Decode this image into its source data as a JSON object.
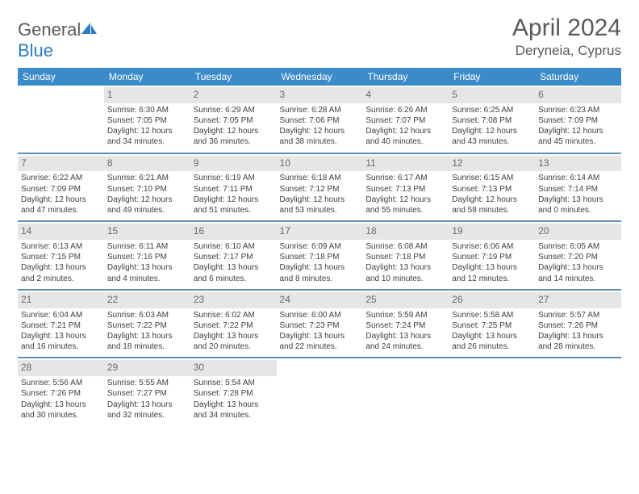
{
  "logo": {
    "text1": "General",
    "text2": "Blue"
  },
  "title": "April 2024",
  "location": "Deryneia, Cyprus",
  "weekdays": [
    "Sunday",
    "Monday",
    "Tuesday",
    "Wednesday",
    "Thursday",
    "Friday",
    "Saturday"
  ],
  "colors": {
    "header_bg": "#3b8bc8",
    "header_text": "#ffffff",
    "daynum_bg": "#e6e6e6",
    "row_border": "#5b8fb8",
    "text": "#404040",
    "logo_blue": "#2b7bbf"
  },
  "weeks": [
    [
      {
        "n": "",
        "sr": "",
        "ss": "",
        "d1": "",
        "d2": ""
      },
      {
        "n": "1",
        "sr": "Sunrise: 6:30 AM",
        "ss": "Sunset: 7:05 PM",
        "d1": "Daylight: 12 hours",
        "d2": "and 34 minutes."
      },
      {
        "n": "2",
        "sr": "Sunrise: 6:29 AM",
        "ss": "Sunset: 7:05 PM",
        "d1": "Daylight: 12 hours",
        "d2": "and 36 minutes."
      },
      {
        "n": "3",
        "sr": "Sunrise: 6:28 AM",
        "ss": "Sunset: 7:06 PM",
        "d1": "Daylight: 12 hours",
        "d2": "and 38 minutes."
      },
      {
        "n": "4",
        "sr": "Sunrise: 6:26 AM",
        "ss": "Sunset: 7:07 PM",
        "d1": "Daylight: 12 hours",
        "d2": "and 40 minutes."
      },
      {
        "n": "5",
        "sr": "Sunrise: 6:25 AM",
        "ss": "Sunset: 7:08 PM",
        "d1": "Daylight: 12 hours",
        "d2": "and 43 minutes."
      },
      {
        "n": "6",
        "sr": "Sunrise: 6:23 AM",
        "ss": "Sunset: 7:09 PM",
        "d1": "Daylight: 12 hours",
        "d2": "and 45 minutes."
      }
    ],
    [
      {
        "n": "7",
        "sr": "Sunrise: 6:22 AM",
        "ss": "Sunset: 7:09 PM",
        "d1": "Daylight: 12 hours",
        "d2": "and 47 minutes."
      },
      {
        "n": "8",
        "sr": "Sunrise: 6:21 AM",
        "ss": "Sunset: 7:10 PM",
        "d1": "Daylight: 12 hours",
        "d2": "and 49 minutes."
      },
      {
        "n": "9",
        "sr": "Sunrise: 6:19 AM",
        "ss": "Sunset: 7:11 PM",
        "d1": "Daylight: 12 hours",
        "d2": "and 51 minutes."
      },
      {
        "n": "10",
        "sr": "Sunrise: 6:18 AM",
        "ss": "Sunset: 7:12 PM",
        "d1": "Daylight: 12 hours",
        "d2": "and 53 minutes."
      },
      {
        "n": "11",
        "sr": "Sunrise: 6:17 AM",
        "ss": "Sunset: 7:13 PM",
        "d1": "Daylight: 12 hours",
        "d2": "and 55 minutes."
      },
      {
        "n": "12",
        "sr": "Sunrise: 6:15 AM",
        "ss": "Sunset: 7:13 PM",
        "d1": "Daylight: 12 hours",
        "d2": "and 58 minutes."
      },
      {
        "n": "13",
        "sr": "Sunrise: 6:14 AM",
        "ss": "Sunset: 7:14 PM",
        "d1": "Daylight: 13 hours",
        "d2": "and 0 minutes."
      }
    ],
    [
      {
        "n": "14",
        "sr": "Sunrise: 6:13 AM",
        "ss": "Sunset: 7:15 PM",
        "d1": "Daylight: 13 hours",
        "d2": "and 2 minutes."
      },
      {
        "n": "15",
        "sr": "Sunrise: 6:11 AM",
        "ss": "Sunset: 7:16 PM",
        "d1": "Daylight: 13 hours",
        "d2": "and 4 minutes."
      },
      {
        "n": "16",
        "sr": "Sunrise: 6:10 AM",
        "ss": "Sunset: 7:17 PM",
        "d1": "Daylight: 13 hours",
        "d2": "and 6 minutes."
      },
      {
        "n": "17",
        "sr": "Sunrise: 6:09 AM",
        "ss": "Sunset: 7:18 PM",
        "d1": "Daylight: 13 hours",
        "d2": "and 8 minutes."
      },
      {
        "n": "18",
        "sr": "Sunrise: 6:08 AM",
        "ss": "Sunset: 7:18 PM",
        "d1": "Daylight: 13 hours",
        "d2": "and 10 minutes."
      },
      {
        "n": "19",
        "sr": "Sunrise: 6:06 AM",
        "ss": "Sunset: 7:19 PM",
        "d1": "Daylight: 13 hours",
        "d2": "and 12 minutes."
      },
      {
        "n": "20",
        "sr": "Sunrise: 6:05 AM",
        "ss": "Sunset: 7:20 PM",
        "d1": "Daylight: 13 hours",
        "d2": "and 14 minutes."
      }
    ],
    [
      {
        "n": "21",
        "sr": "Sunrise: 6:04 AM",
        "ss": "Sunset: 7:21 PM",
        "d1": "Daylight: 13 hours",
        "d2": "and 16 minutes."
      },
      {
        "n": "22",
        "sr": "Sunrise: 6:03 AM",
        "ss": "Sunset: 7:22 PM",
        "d1": "Daylight: 13 hours",
        "d2": "and 18 minutes."
      },
      {
        "n": "23",
        "sr": "Sunrise: 6:02 AM",
        "ss": "Sunset: 7:22 PM",
        "d1": "Daylight: 13 hours",
        "d2": "and 20 minutes."
      },
      {
        "n": "24",
        "sr": "Sunrise: 6:00 AM",
        "ss": "Sunset: 7:23 PM",
        "d1": "Daylight: 13 hours",
        "d2": "and 22 minutes."
      },
      {
        "n": "25",
        "sr": "Sunrise: 5:59 AM",
        "ss": "Sunset: 7:24 PM",
        "d1": "Daylight: 13 hours",
        "d2": "and 24 minutes."
      },
      {
        "n": "26",
        "sr": "Sunrise: 5:58 AM",
        "ss": "Sunset: 7:25 PM",
        "d1": "Daylight: 13 hours",
        "d2": "and 26 minutes."
      },
      {
        "n": "27",
        "sr": "Sunrise: 5:57 AM",
        "ss": "Sunset: 7:26 PM",
        "d1": "Daylight: 13 hours",
        "d2": "and 28 minutes."
      }
    ],
    [
      {
        "n": "28",
        "sr": "Sunrise: 5:56 AM",
        "ss": "Sunset: 7:26 PM",
        "d1": "Daylight: 13 hours",
        "d2": "and 30 minutes."
      },
      {
        "n": "29",
        "sr": "Sunrise: 5:55 AM",
        "ss": "Sunset: 7:27 PM",
        "d1": "Daylight: 13 hours",
        "d2": "and 32 minutes."
      },
      {
        "n": "30",
        "sr": "Sunrise: 5:54 AM",
        "ss": "Sunset: 7:28 PM",
        "d1": "Daylight: 13 hours",
        "d2": "and 34 minutes."
      },
      {
        "n": "",
        "sr": "",
        "ss": "",
        "d1": "",
        "d2": ""
      },
      {
        "n": "",
        "sr": "",
        "ss": "",
        "d1": "",
        "d2": ""
      },
      {
        "n": "",
        "sr": "",
        "ss": "",
        "d1": "",
        "d2": ""
      },
      {
        "n": "",
        "sr": "",
        "ss": "",
        "d1": "",
        "d2": ""
      }
    ]
  ]
}
